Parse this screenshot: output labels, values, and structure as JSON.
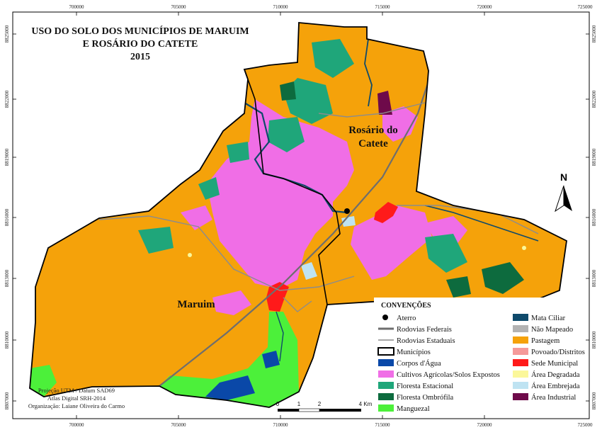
{
  "title": {
    "line1": "USO DO SOLO DOS MUNICÍPIOS DE MARUIM",
    "line2": "E ROSÁRIO DO CATETE",
    "line3": "2015"
  },
  "coords": {
    "x_top": [
      "700000",
      "705000",
      "710000",
      "715000",
      "720000",
      "725000"
    ],
    "x_bottom": [
      "700000",
      "705000",
      "710000",
      "715000",
      "720000",
      "725000"
    ],
    "y_left": [
      "8825000",
      "8822000",
      "8819000",
      "8816000",
      "8813000",
      "8810000",
      "8807000"
    ],
    "y_right": [
      "8825000",
      "8822000",
      "8819000",
      "8816000",
      "8813000",
      "8810000",
      "8807000"
    ]
  },
  "labels": {
    "maruim": "Maruim",
    "rosario_line1": "Rosário do",
    "rosario_line2": "Catete"
  },
  "north_arrow": {
    "label": "N"
  },
  "scale_bar": {
    "ticks": [
      "0",
      "1",
      "2",
      "4 Km"
    ]
  },
  "legend": {
    "title": "CONVENÇÕES",
    "left": [
      {
        "key": "aterro",
        "label": "Aterro",
        "symbol": "dot",
        "color": "#000000"
      },
      {
        "key": "rodovias_federais",
        "label": "Rodovias Federais",
        "symbol": "line-thick",
        "color": "#6e6e6e"
      },
      {
        "key": "rodovias_estaduais",
        "label": "Rodovias Estaduais",
        "symbol": "line-thin",
        "color": "#8c8c8c"
      },
      {
        "key": "municipios",
        "label": "Municípios",
        "symbol": "outline",
        "color": "#000000"
      },
      {
        "key": "corpos_agua",
        "label": "Corpos d'Água",
        "symbol": "fill",
        "color": "#0a48a8"
      },
      {
        "key": "cultivos",
        "label": "Cultivos Agrícolas/Solos Expostos",
        "symbol": "fill",
        "color": "#f06ee6"
      },
      {
        "key": "floresta_estacional",
        "label": "Floresta Estacional",
        "symbol": "fill",
        "color": "#1fa67a"
      },
      {
        "key": "floresta_ombrofila",
        "label": "Floresta Ombrófila",
        "symbol": "fill",
        "color": "#0d6b3e"
      },
      {
        "key": "manguezal",
        "label": "Manguezal",
        "symbol": "fill",
        "color": "#4cf03a"
      }
    ],
    "right": [
      {
        "key": "mata_ciliar",
        "label": "Mata Ciliar",
        "symbol": "fill",
        "color": "#0f4a6b"
      },
      {
        "key": "nao_mapeado",
        "label": "Não Mapeado",
        "symbol": "fill",
        "color": "#b3b3b3"
      },
      {
        "key": "pastagem",
        "label": "Pastagem",
        "symbol": "fill",
        "color": "#f5a20a"
      },
      {
        "key": "povoado",
        "label": "Povoado/Distritos",
        "symbol": "fill",
        "color": "#f59a9a"
      },
      {
        "key": "sede_municipal",
        "label": "Sede Municipal",
        "symbol": "fill",
        "color": "#ff1a1a"
      },
      {
        "key": "area_degradada",
        "label": "Área Degradada",
        "symbol": "fill",
        "color": "#fbf79a"
      },
      {
        "key": "area_embrejada",
        "label": "Área Embrejada",
        "symbol": "fill",
        "color": "#bfe3f2"
      },
      {
        "key": "area_industrial",
        "label": "Área Industrial",
        "symbol": "fill",
        "color": "#6e0a4a"
      }
    ]
  },
  "credits": {
    "line1": "Projeção UTM / Datum SAD69",
    "line2": "Atlas Digital SRH-2014",
    "line3": "Organização: Laiane Oliveira do Carmo"
  }
}
